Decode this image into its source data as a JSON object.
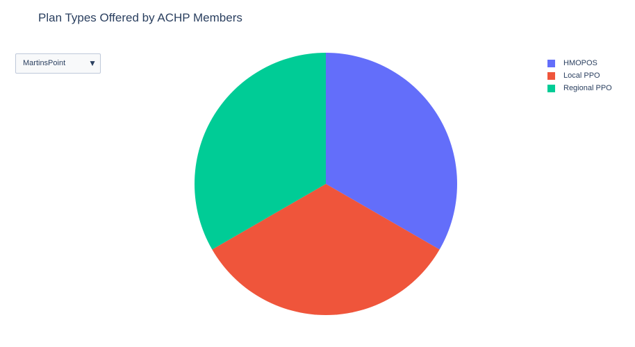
{
  "title": "Plan Types Offered by ACHP Members",
  "dropdown": {
    "selected": "MartinsPoint",
    "arrow_icon": "triangle-down-icon"
  },
  "chart_data": {
    "type": "pie",
    "title": "Plan Types Offered by ACHP Members",
    "labels": [
      "HMOPOS",
      "Local PPO",
      "Regional PPO"
    ],
    "values": [
      1,
      1,
      1
    ],
    "colors": [
      "#636efa",
      "#ef553b",
      "#00cc96"
    ],
    "direction": "clockwise",
    "start_angle": "top",
    "legend_placement": "top-right"
  }
}
